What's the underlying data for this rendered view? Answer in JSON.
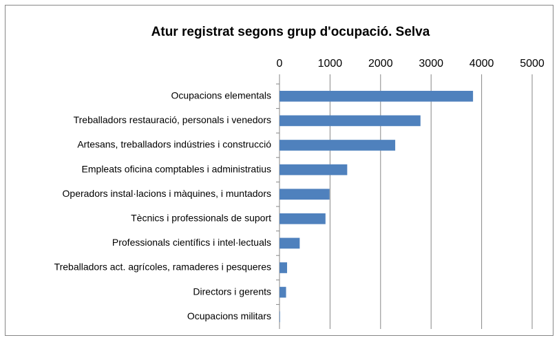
{
  "chart_data": {
    "type": "bar",
    "orientation": "horizontal",
    "title": "Atur registrat segons grup d'ocupació. Selva",
    "categories": [
      "Ocupacions elementals",
      "Treballadors restauració, personals i venedors",
      "Artesans, treballadors indústries i construcció",
      "Empleats oficina comptables i administratius",
      "Operadors instal·lacions i màquines, i muntadors",
      "Tècnics i professionals de suport",
      "Professionals científics i intel·lectuals",
      "Treballadors act. agrícoles, ramaderes i pesqueres",
      "Directors i gerents",
      "Ocupacions militars"
    ],
    "values": [
      3830,
      2790,
      2290,
      1340,
      990,
      910,
      400,
      150,
      130,
      10
    ],
    "color": "#4f81bd",
    "xlim": [
      0,
      5000
    ],
    "xticks": [
      0,
      1000,
      2000,
      3000,
      4000,
      5000
    ],
    "grid": true
  }
}
